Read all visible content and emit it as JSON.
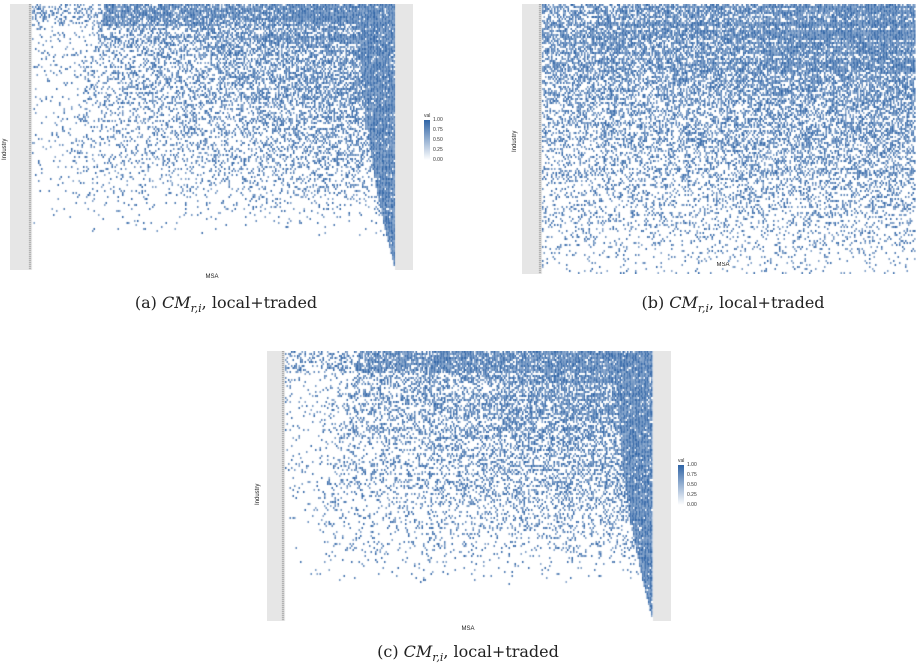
{
  "chart_data": [
    {
      "type": "heatmap",
      "xlabel": "MSA",
      "ylabel": "Industry",
      "legend": {
        "title": "val",
        "ticks": [
          "1.00",
          "0.75",
          "0.50",
          "0.25",
          "0.00"
        ],
        "range": [
          0,
          1
        ]
      },
      "color_low": "#ffffff",
      "color_high": "#2f64a6",
      "caption": {
        "label": "(a)",
        "math_base": "CM",
        "math_sub": "r,i",
        "text": ", local+traded"
      }
    },
    {
      "type": "heatmap",
      "xlabel": "MSA",
      "ylabel": "Industry",
      "color_low": "#ffffff",
      "color_high": "#2f64a6",
      "caption": {
        "label": "(b)",
        "math_base": "CM",
        "math_sub": "r,i",
        "text": ", local+traded"
      }
    },
    {
      "type": "heatmap",
      "xlabel": "MSA",
      "ylabel": "Industry",
      "legend": {
        "title": "val",
        "ticks": [
          "1.00",
          "0.75",
          "0.50",
          "0.25",
          "0.00"
        ],
        "range": [
          0,
          1
        ]
      },
      "color_low": "#ffffff",
      "color_high": "#2f64a6",
      "caption": {
        "label": "(c)",
        "math_base": "CM",
        "math_sub": "r,i",
        "text": ", local+traded"
      }
    }
  ]
}
